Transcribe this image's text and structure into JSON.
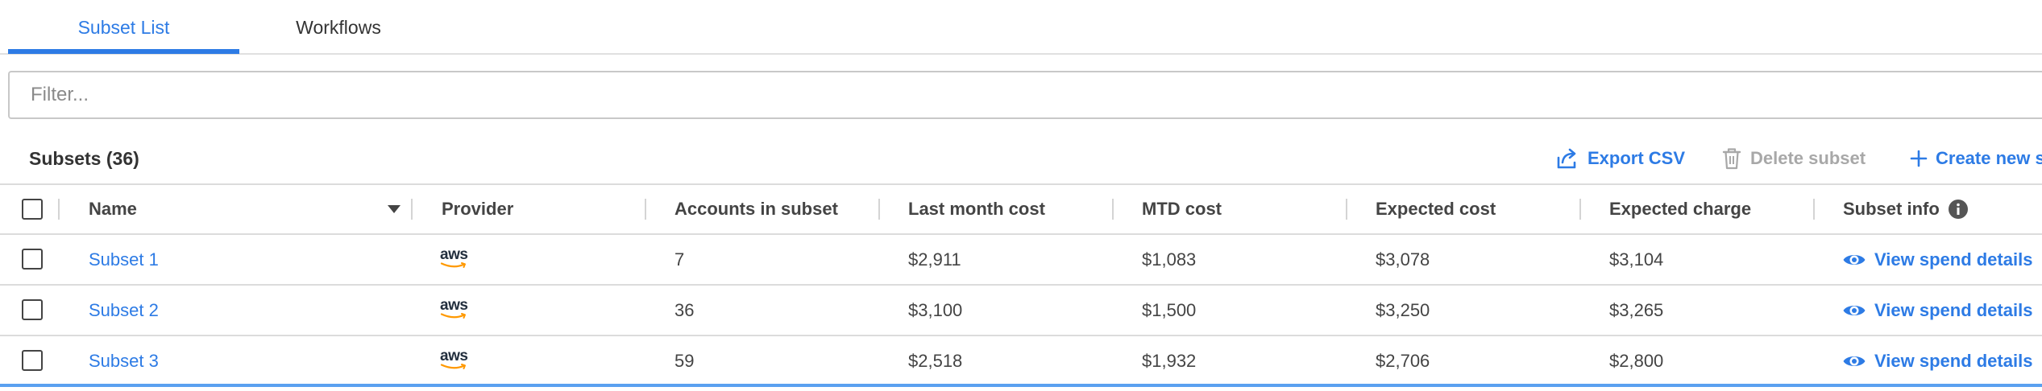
{
  "tabs": [
    {
      "label": "Subset List",
      "active": true
    },
    {
      "label": "Workflows",
      "active": false
    }
  ],
  "filter": {
    "placeholder": "Filter...",
    "value": ""
  },
  "subsets_header": {
    "title": "Subsets (36)",
    "export_label": "Export CSV",
    "delete_label": "Delete subset",
    "create_label": "Create new s"
  },
  "table": {
    "columns": {
      "name": "Name",
      "provider": "Provider",
      "accounts": "Accounts in subset",
      "last_month": "Last month cost",
      "mtd": "MTD cost",
      "expected_cost": "Expected cost",
      "expected_charge": "Expected charge",
      "subset_info": "Subset info"
    },
    "rows": [
      {
        "name": "Subset 1",
        "provider": "aws",
        "accounts": "7",
        "last_month": "$2,911",
        "mtd": "$1,083",
        "expected_cost": "$3,078",
        "expected_charge": "$3,104",
        "action": "View spend details"
      },
      {
        "name": "Subset 2",
        "provider": "aws",
        "accounts": "36",
        "last_month": "$3,100",
        "mtd": "$1,500",
        "expected_cost": "$3,250",
        "expected_charge": "$3,265",
        "action": "View spend details"
      },
      {
        "name": "Subset 3",
        "provider": "aws",
        "accounts": "59",
        "last_month": "$2,518",
        "mtd": "$1,932",
        "expected_cost": "$2,706",
        "expected_charge": "$2,800",
        "action": "View spend details"
      }
    ]
  },
  "colors": {
    "accent": "#2d7be5",
    "disabled": "#a8a8a8",
    "aws_orange": "#ff9900"
  }
}
